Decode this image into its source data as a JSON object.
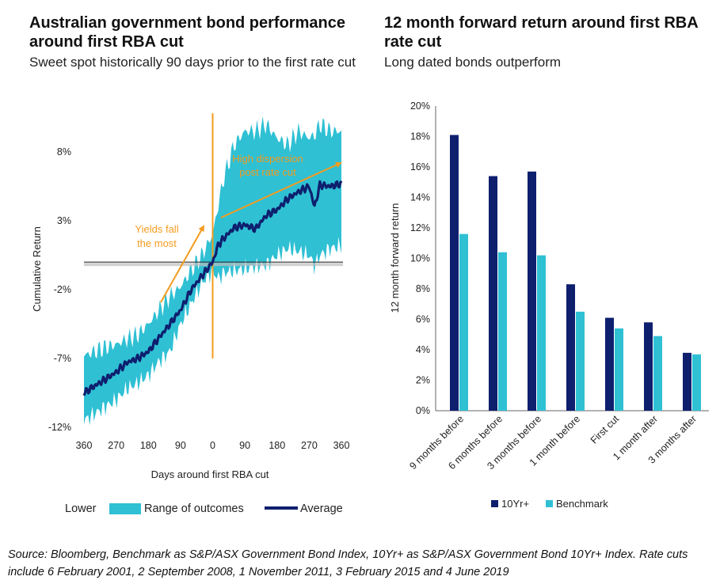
{
  "left": {
    "title": "Australian government bond performance around first RBA cut",
    "subtitle": "Sweet spot historically 90 days prior to the first rate cut"
  },
  "right": {
    "title": "12 month forward return around first RBA rate cut",
    "subtitle": "Long dated bonds outperform"
  },
  "source": "Source: Bloomberg, Benchmark as S&P/ASX Government Bond Index, 10Yr+ as S&P/ASX Government Bond 10Yr+ Index. Rate cuts include 6 February 2001, 2 September 2008, 1 November 2011, 3 February 2015 and 4 June 2019",
  "colors": {
    "range": "#2fc0d4",
    "average": "#0e1f6e",
    "annotation": "#f39c1f",
    "bar_10yr": "#0e1f6e",
    "bar_benchmark": "#2fc0d4"
  },
  "chart_data": [
    {
      "type": "area",
      "xlabel": "Days around first RBA cut",
      "ylabel": "Cumulative Return",
      "x_ticks": [
        "360",
        "270",
        "180",
        "90",
        "0",
        "90",
        "180",
        "270",
        "360"
      ],
      "y_ticks": [
        "8%",
        "3%",
        "-2%",
        "-7%",
        "-12%"
      ],
      "xlim": [
        -360,
        360
      ],
      "ylim": [
        -12,
        11
      ],
      "x": [
        -360,
        -330,
        -300,
        -270,
        -240,
        -210,
        -180,
        -150,
        -120,
        -90,
        -60,
        -30,
        0,
        15,
        30,
        60,
        90,
        120,
        150,
        180,
        210,
        240,
        270,
        285,
        300,
        330,
        360
      ],
      "series": [
        {
          "name": "Average",
          "values": [
            -9.5,
            -9.0,
            -8.5,
            -8.0,
            -7.3,
            -7.0,
            -6.5,
            -5.5,
            -4.5,
            -3.5,
            -2.0,
            -1.0,
            0.0,
            1.2,
            1.7,
            2.5,
            2.7,
            2.4,
            3.4,
            3.8,
            4.6,
            5.1,
            5.5,
            4.0,
            5.6,
            5.5,
            5.7
          ]
        },
        {
          "name": "Range of outcomes",
          "upper": [
            -6.8,
            -6.5,
            -6.2,
            -6.0,
            -5.6,
            -5.3,
            -4.5,
            -3.5,
            -2.5,
            -1.8,
            -0.6,
            0.5,
            2.0,
            4.0,
            6.0,
            8.5,
            9.5,
            9.5,
            10.0,
            9.0,
            8.5,
            9.5,
            9.0,
            9.2,
            10.0,
            9.5,
            9.5
          ],
          "lower": [
            -11.5,
            -11.0,
            -10.5,
            -10.0,
            -9.2,
            -8.8,
            -8.2,
            -7.2,
            -6.5,
            -4.5,
            -3.0,
            -1.5,
            -0.6,
            -1.2,
            -0.8,
            -0.6,
            -0.5,
            -0.3,
            -0.2,
            0.5,
            1.0,
            0.8,
            0.5,
            -0.3,
            0.5,
            1.0,
            1.2
          ]
        }
      ],
      "legend": [
        "Lower",
        "Range of outcomes",
        "Average"
      ],
      "legend_position": "bottom",
      "annotations": [
        "Yields fall the most",
        "High dispersion post rate cut"
      ]
    },
    {
      "type": "bar",
      "ylabel": "12 month forward return",
      "categories": [
        "9 months before",
        "6 months before",
        "3 months before",
        "1 month before",
        "First cut",
        "1 month after",
        "3 months after"
      ],
      "y_ticks": [
        "20%",
        "18%",
        "16%",
        "14%",
        "12%",
        "10%",
        "8%",
        "6%",
        "4%",
        "2%",
        "0%"
      ],
      "ylim": [
        0,
        20
      ],
      "series": [
        {
          "name": "10Yr+",
          "values": [
            18.1,
            15.4,
            15.7,
            8.3,
            6.1,
            5.8,
            3.8
          ]
        },
        {
          "name": "Benchmark",
          "values": [
            11.6,
            10.4,
            10.2,
            6.5,
            5.4,
            4.9,
            3.7
          ]
        }
      ],
      "legend_position": "bottom"
    }
  ]
}
